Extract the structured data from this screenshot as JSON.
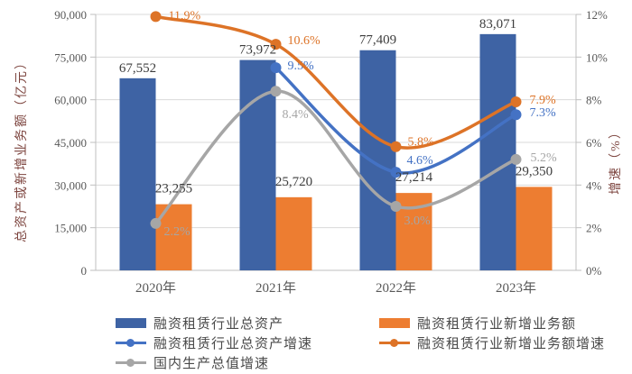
{
  "chart_data": {
    "type": "combo",
    "title": "",
    "categories": [
      "2020年",
      "2021年",
      "2022年",
      "2023年"
    ],
    "left_axis": {
      "title": "总资产或新增业务额（亿元）",
      "min": 0,
      "max": 90000,
      "step": 15000,
      "tick_labels": [
        "0",
        "15,000",
        "30,000",
        "45,000",
        "60,000",
        "75,000",
        "90,000"
      ]
    },
    "right_axis": {
      "title": "增速（%）",
      "min": 0,
      "max": 12,
      "step": 2,
      "tick_labels": [
        "0%",
        "2%",
        "4%",
        "6%",
        "8%",
        "10%",
        "12%"
      ]
    },
    "grid": true,
    "legend_position": "bottom",
    "series": [
      {
        "kind": "bar",
        "axis": "left",
        "name": "融资租赁行业总资产",
        "color": "#3e63a4",
        "values": [
          67552,
          73972,
          77409,
          83071
        ],
        "data_labels": [
          "67,552",
          "73,972",
          "77,409",
          "83,071"
        ]
      },
      {
        "kind": "bar",
        "axis": "left",
        "name": "融资租赁行业新增业务额",
        "color": "#ed7d31",
        "values": [
          23255,
          25720,
          27214,
          29350
        ],
        "data_labels": [
          "23,255",
          "25,720",
          "27,214",
          "29,350"
        ]
      },
      {
        "kind": "line",
        "axis": "right",
        "name": "融资租赁行业总资产增速",
        "color": "#4472c4",
        "values": [
          null,
          9.5,
          4.6,
          7.3
        ],
        "data_labels": [
          "",
          "9.5%",
          "4.6%",
          "7.3%"
        ]
      },
      {
        "kind": "line",
        "axis": "right",
        "name": "融资租赁行业新增业务额增速",
        "color": "#dd7327",
        "values": [
          11.9,
          10.6,
          5.8,
          7.9
        ],
        "data_labels": [
          "11.9%",
          "10.6%",
          "5.8%",
          "7.9%"
        ]
      },
      {
        "kind": "line",
        "axis": "right",
        "name": "国内生产总值增速",
        "color": "#a6a6a6",
        "values": [
          2.2,
          8.4,
          3.0,
          5.2
        ],
        "data_labels": [
          "2.2%",
          "8.4%",
          "3.0%",
          "5.2%"
        ]
      }
    ]
  }
}
